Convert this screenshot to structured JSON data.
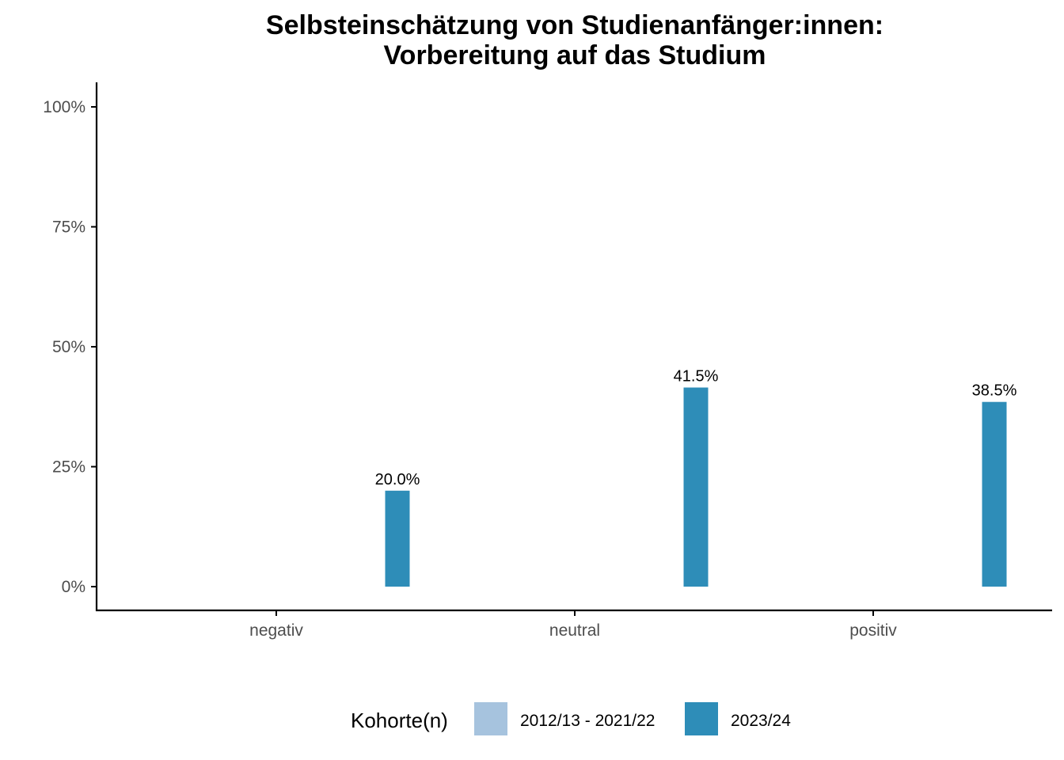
{
  "chart_data": {
    "type": "bar",
    "title_lines": [
      "Selbsteinschätzung von Studienanfänger:innen:",
      "Vorbereitung auf das Studium"
    ],
    "categories": [
      "negativ",
      "neutral",
      "positiv"
    ],
    "series": [
      {
        "name": "2012/13 - 2021/22",
        "color": "#a6c3de",
        "values": [
          null,
          null,
          null
        ]
      },
      {
        "name": "2023/24",
        "color": "#2e8db8",
        "values": [
          20.0,
          41.5,
          38.5
        ]
      }
    ],
    "data_labels": [
      {
        "series": 1,
        "category": 0,
        "text": "20.0%"
      },
      {
        "series": 1,
        "category": 1,
        "text": "41.5%"
      },
      {
        "series": 1,
        "category": 2,
        "text": "38.5%"
      }
    ],
    "y_ticks": [
      {
        "value": 0,
        "label": "0%"
      },
      {
        "value": 25,
        "label": "25%"
      },
      {
        "value": 50,
        "label": "50%"
      },
      {
        "value": 75,
        "label": "75%"
      },
      {
        "value": 100,
        "label": "100%"
      }
    ],
    "ylim": [
      0,
      100
    ],
    "grid": false,
    "legend": {
      "title": "Kohorte(n)",
      "position": "bottom"
    }
  }
}
